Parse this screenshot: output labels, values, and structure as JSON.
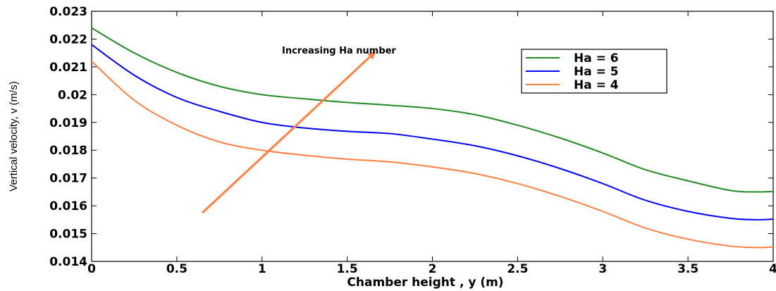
{
  "chart_data": {
    "type": "line",
    "xlabel": "Chamber height , y (m)",
    "ylabel": "Vertical velocity, v (m/s)",
    "xlim": [
      0,
      4
    ],
    "ylim": [
      0.014,
      0.023
    ],
    "xticks": [
      0,
      0.5,
      1,
      1.5,
      2,
      2.5,
      3,
      3.5,
      4
    ],
    "xtick_labels": [
      "0",
      "0.5",
      "1",
      "1.5",
      "2",
      "2.5",
      "3",
      "3.5",
      "4"
    ],
    "yticks": [
      0.014,
      0.015,
      0.016,
      0.017,
      0.018,
      0.019,
      0.02,
      0.021,
      0.022,
      0.023
    ],
    "ytick_labels": [
      "0.014",
      "0.015",
      "0.016",
      "0.017",
      "0.018",
      "0.019",
      "0.02",
      "0.021",
      "0.022",
      "0.023"
    ],
    "grid": false,
    "legend_position": "top-right",
    "x": [
      0,
      0.25,
      0.5,
      0.75,
      1.0,
      1.25,
      1.5,
      1.75,
      2.0,
      2.25,
      2.5,
      2.75,
      3.0,
      3.25,
      3.5,
      3.75,
      3.9,
      4.0
    ],
    "series": [
      {
        "name": "Ha = 6",
        "color": "#228b22",
        "values": [
          0.0224,
          0.0215,
          0.0208,
          0.0203,
          0.02,
          0.01985,
          0.01972,
          0.01962,
          0.0195,
          0.01928,
          0.0189,
          0.01844,
          0.0179,
          0.0173,
          0.0169,
          0.01655,
          0.0165,
          0.01652
        ]
      },
      {
        "name": "Ha = 5",
        "color": "#0000ff",
        "values": [
          0.0218,
          0.0207,
          0.0199,
          0.0194,
          0.019,
          0.0188,
          0.01868,
          0.0186,
          0.0184,
          0.01816,
          0.0178,
          0.01734,
          0.0168,
          0.0162,
          0.0158,
          0.01555,
          0.0155,
          0.01552
        ]
      },
      {
        "name": "Ha = 4",
        "color": "#ff8040",
        "values": [
          0.0212,
          0.0198,
          0.0189,
          0.0183,
          0.018,
          0.01782,
          0.01768,
          0.01758,
          0.0174,
          0.01716,
          0.0168,
          0.01634,
          0.0158,
          0.0152,
          0.0148,
          0.01455,
          0.0145,
          0.01452
        ]
      }
    ],
    "annotation": {
      "text": "Increasing Ha number",
      "color": "#ff8040",
      "arrow_from": [
        0.65,
        0.01575
      ],
      "arrow_to": [
        1.67,
        0.02157
      ]
    }
  }
}
